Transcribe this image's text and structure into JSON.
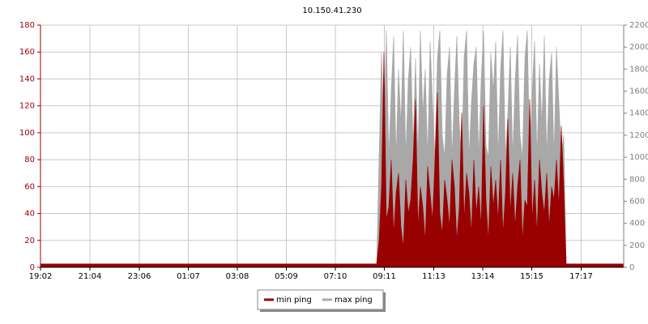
{
  "chart_data": {
    "type": "area",
    "title": "10.150.41.230",
    "x": [
      0,
      60,
      120,
      180,
      240,
      300,
      360,
      420,
      480,
      540,
      600,
      660,
      720,
      780,
      830,
      836,
      842,
      848,
      854,
      860,
      866,
      872,
      878,
      884,
      890,
      896,
      902,
      908,
      914,
      920,
      926,
      932,
      938,
      944,
      950,
      956,
      962,
      968,
      974,
      980,
      986,
      992,
      998,
      1004,
      1010,
      1016,
      1022,
      1028,
      1034,
      1040,
      1046,
      1052,
      1058,
      1064,
      1070,
      1076,
      1082,
      1088,
      1094,
      1100,
      1106,
      1112,
      1118,
      1124,
      1130,
      1136,
      1142,
      1148,
      1154,
      1160,
      1166,
      1172,
      1178,
      1184,
      1190,
      1196,
      1202,
      1208,
      1214,
      1220,
      1226,
      1232,
      1238,
      1244,
      1250,
      1256,
      1262,
      1268,
      1274,
      1280,
      1286,
      1292,
      1298,
      1360,
      1420,
      1440
    ],
    "series": [
      {
        "name": "min ping",
        "color": "#990000",
        "values": [
          2.5,
          2.5,
          2.5,
          2.5,
          2.5,
          2.5,
          2.5,
          2.5,
          2.5,
          2.5,
          2.5,
          2.5,
          2.5,
          2.5,
          2.5,
          20,
          60,
          160,
          35,
          45,
          80,
          25,
          55,
          70,
          30,
          15,
          65,
          40,
          50,
          80,
          125,
          30,
          60,
          45,
          20,
          75,
          55,
          35,
          80,
          130,
          40,
          25,
          65,
          50,
          30,
          80,
          60,
          20,
          45,
          115,
          35,
          70,
          55,
          25,
          80,
          40,
          60,
          30,
          120,
          50,
          20,
          75,
          45,
          65,
          35,
          80,
          25,
          55,
          110,
          40,
          70,
          30,
          60,
          80,
          20,
          50,
          45,
          125,
          35,
          65,
          25,
          80,
          55,
          40,
          70,
          30,
          60,
          50,
          80,
          45,
          105,
          60,
          2.5,
          2.5,
          2.5,
          2.5
        ]
      },
      {
        "name": "max ping",
        "color": "#a8a8a8",
        "axis": "y2",
        "values": [
          30,
          30,
          30,
          30,
          30,
          30,
          30,
          30,
          30,
          30,
          30,
          30,
          30,
          30,
          30,
          1000,
          1950,
          1200,
          2150,
          1000,
          1600,
          2100,
          1000,
          1800,
          1300,
          2150,
          1000,
          1700,
          2000,
          1100,
          1900,
          1000,
          2150,
          1400,
          1800,
          1000,
          2050,
          1500,
          1000,
          1900,
          2150,
          1200,
          1000,
          1750,
          2000,
          1000,
          1600,
          2100,
          1300,
          1000,
          1900,
          2150,
          1000,
          1500,
          1850,
          2000,
          1000,
          1700,
          2150,
          1100,
          1000,
          1950,
          1600,
          2050,
          1000,
          1800,
          2150,
          1000,
          1400,
          2000,
          1000,
          1700,
          2100,
          1200,
          1000,
          1900,
          2150,
          1000,
          1600,
          2050,
          1000,
          1850,
          1300,
          2100,
          1000,
          1700,
          1950,
          1000,
          2000,
          1500,
          1000,
          1200,
          30,
          30,
          30,
          30
        ]
      }
    ],
    "xlim": [
      0,
      1440
    ],
    "xticks": [
      {
        "value": 0,
        "label": "19:02"
      },
      {
        "value": 122,
        "label": "21:04"
      },
      {
        "value": 244,
        "label": "23:06"
      },
      {
        "value": 365,
        "label": "01:07"
      },
      {
        "value": 486,
        "label": "03:08"
      },
      {
        "value": 607,
        "label": "05:09"
      },
      {
        "value": 728,
        "label": "07:10"
      },
      {
        "value": 849,
        "label": "09:11"
      },
      {
        "value": 971,
        "label": "11:13"
      },
      {
        "value": 1092,
        "label": "13:14"
      },
      {
        "value": 1213,
        "label": "15:15"
      },
      {
        "value": 1335,
        "label": "17:17"
      }
    ],
    "ylim": [
      0,
      180
    ],
    "yticks": [
      0,
      20,
      40,
      60,
      80,
      100,
      120,
      140,
      160,
      180
    ],
    "y2lim": [
      0,
      2200
    ],
    "y2ticks": [
      0,
      200,
      400,
      600,
      800,
      1000,
      1200,
      1400,
      1600,
      1800,
      2000,
      2200
    ],
    "grid": true,
    "legend": "bottom"
  }
}
